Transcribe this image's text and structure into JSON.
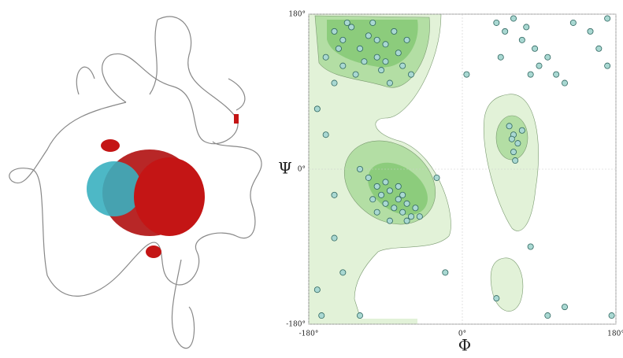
{
  "chart_data": {
    "type": "scatter",
    "x_label": "Φ",
    "y_label": "Ψ",
    "xlim": [
      -180,
      180
    ],
    "ylim": [
      -180,
      180
    ],
    "xticks": [
      {
        "value": -180,
        "label": "-180°"
      },
      {
        "value": 0,
        "label": "0°"
      },
      {
        "value": 180,
        "label": "180°"
      }
    ],
    "yticks": [
      {
        "value": -180,
        "label": "-180°"
      },
      {
        "value": 0,
        "label": "0°"
      },
      {
        "value": 180,
        "label": "180°"
      }
    ],
    "grid": true,
    "color": "#a9d8d2",
    "x": [
      -150,
      -140,
      -130,
      -120,
      -110,
      -100,
      -90,
      -80,
      -75,
      -70,
      -140,
      -125,
      -115,
      -95,
      -85,
      -160,
      -150,
      -135,
      -105,
      -65,
      -60,
      -145,
      -100,
      -90,
      -100,
      -95,
      -90,
      -85,
      -80,
      -75,
      -70,
      -65,
      -60,
      -55,
      -110,
      -105,
      -90,
      -75,
      -65,
      -50,
      -120,
      -100,
      -85,
      -70,
      55,
      60,
      65,
      60,
      70,
      62,
      58,
      40,
      50,
      60,
      70,
      75,
      85,
      90,
      100,
      110,
      120,
      130,
      150,
      160,
      170,
      170,
      45,
      80,
      5,
      -170,
      -160,
      -150,
      -140,
      -165,
      -30,
      40,
      80,
      100,
      120,
      175,
      -120,
      -170,
      -150,
      -20
    ],
    "y": [
      160,
      150,
      165,
      140,
      155,
      130,
      145,
      160,
      135,
      120,
      120,
      110,
      125,
      115,
      100,
      130,
      100,
      170,
      170,
      150,
      110,
      140,
      150,
      125,
      -20,
      -30,
      -40,
      -25,
      -45,
      -35,
      -50,
      -40,
      -55,
      -45,
      -10,
      -35,
      -15,
      -20,
      -60,
      -55,
      0,
      -50,
      -60,
      -30,
      50,
      40,
      30,
      20,
      45,
      10,
      35,
      170,
      160,
      175,
      150,
      165,
      140,
      120,
      130,
      110,
      100,
      170,
      160,
      140,
      120,
      175,
      130,
      110,
      110,
      70,
      40,
      -80,
      -120,
      -170,
      -10,
      -150,
      -90,
      -170,
      -160,
      -170,
      -170,
      -140,
      -30,
      -120
    ]
  }
}
